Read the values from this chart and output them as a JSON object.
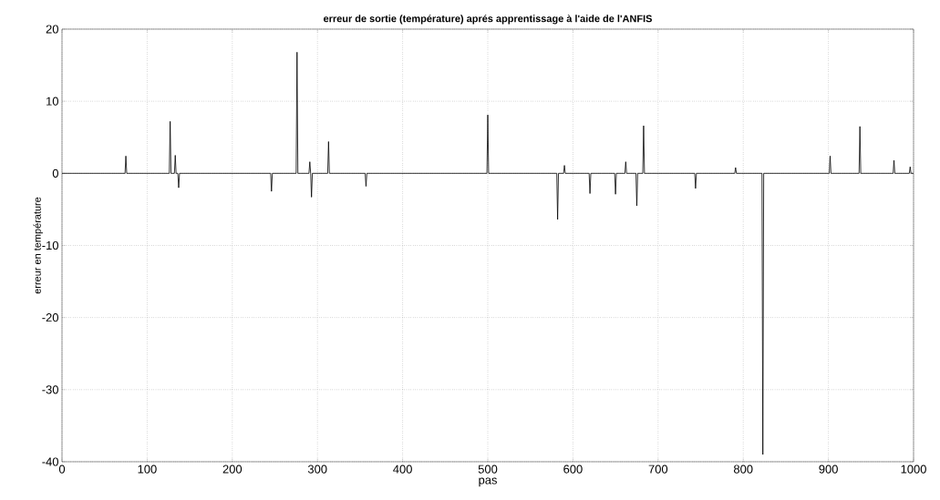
{
  "chart_data": {
    "type": "line",
    "title": "erreur de sortie (température) aprés apprentissage à l'aide de l'ANFIS",
    "xlabel": "pas",
    "ylabel": "erreur en température",
    "x": [
      0,
      74,
      75,
      76,
      126,
      127,
      128,
      132,
      133,
      134,
      136,
      137,
      138,
      245,
      246,
      247,
      275,
      276,
      277,
      290,
      291,
      292,
      293,
      294,
      312,
      313,
      314,
      356,
      357,
      358,
      499,
      500,
      501,
      581,
      582,
      583,
      589,
      590,
      591,
      619,
      620,
      621,
      649,
      650,
      651,
      661,
      662,
      663,
      674,
      675,
      676,
      682,
      683,
      684,
      743,
      744,
      745,
      790,
      791,
      792,
      822,
      823,
      824,
      901,
      902,
      903,
      936,
      937,
      938,
      976,
      977,
      978,
      995,
      996,
      997,
      1000
    ],
    "values": [
      0,
      0,
      2.4,
      0,
      0,
      7.2,
      0,
      0,
      2.5,
      0,
      0,
      -2,
      0,
      0,
      -2.5,
      0,
      0,
      16.8,
      0,
      0,
      1.6,
      0,
      -3.3,
      0,
      0,
      4.4,
      0,
      0,
      -1.8,
      0,
      0,
      8.1,
      0,
      0,
      -6.4,
      0,
      0,
      1.1,
      0,
      0,
      -2.8,
      0,
      0,
      -2.9,
      0,
      0,
      1.6,
      0,
      0,
      -4.5,
      0,
      0,
      6.6,
      0,
      0,
      -2.1,
      0,
      0,
      0.8,
      0,
      0,
      -39,
      0,
      0,
      2.4,
      0,
      0,
      6.5,
      0,
      0,
      1.8,
      0,
      0,
      0.9,
      0,
      0
    ],
    "color": "#000000",
    "xlim": [
      0,
      1000
    ],
    "ylim": [
      -40,
      20
    ],
    "xticks": [
      0,
      100,
      200,
      300,
      400,
      500,
      600,
      700,
      800,
      900,
      1000
    ],
    "yticks": [
      -40,
      -30,
      -20,
      -10,
      0,
      10,
      20
    ],
    "grid": true,
    "marker": "none",
    "line_style": "solid"
  }
}
